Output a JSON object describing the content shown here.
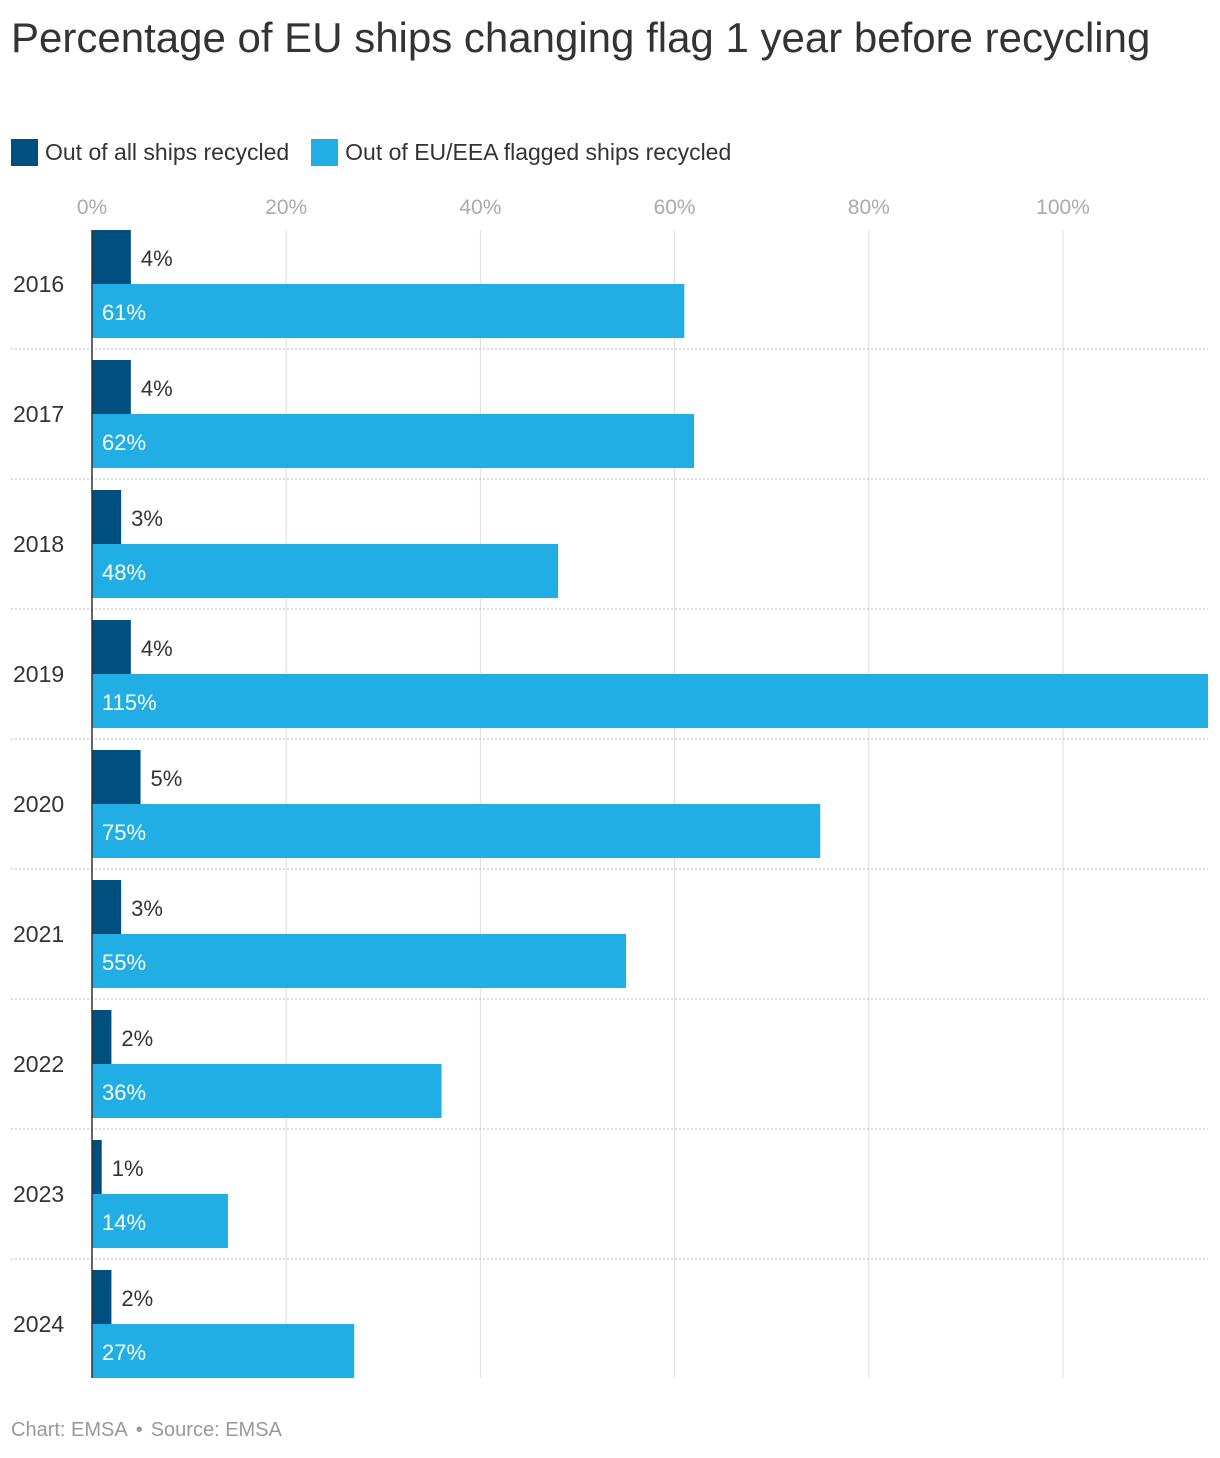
{
  "title": "Percentage of EU ships changing flag 1 year before recycling",
  "legend": [
    {
      "label": "Out of all ships recycled",
      "color": "#00507f"
    },
    {
      "label": "Out of EU/EEA flagged ships recycled",
      "color": "#20aee5"
    }
  ],
  "footer": {
    "chart_credit": "Chart: EMSA",
    "separator": "•",
    "source": "Source: EMSA"
  },
  "chart_data": {
    "type": "bar",
    "orientation": "horizontal",
    "categories": [
      "2016",
      "2017",
      "2018",
      "2019",
      "2020",
      "2021",
      "2022",
      "2023",
      "2024"
    ],
    "series": [
      {
        "name": "Out of all ships recycled",
        "color": "#00507f",
        "label_color": "#333333",
        "values": [
          4,
          4,
          3,
          4,
          5,
          3,
          2,
          1,
          2
        ],
        "labels": [
          "4%",
          "4%",
          "3%",
          "4%",
          "5%",
          "3%",
          "2%",
          "1%",
          "2%"
        ]
      },
      {
        "name": "Out of EU/EEA flagged ships recycled",
        "color": "#20aee5",
        "label_color": "#ffffff",
        "values": [
          61,
          62,
          48,
          115,
          75,
          55,
          36,
          14,
          27
        ],
        "labels": [
          "61%",
          "62%",
          "48%",
          "115%",
          "75%",
          "55%",
          "36%",
          "14%",
          "27%"
        ]
      }
    ],
    "xticks": [
      0,
      20,
      40,
      60,
      80,
      100
    ],
    "xtick_labels": [
      "0%",
      "20%",
      "40%",
      "60%",
      "80%",
      "100%"
    ],
    "xlim": [
      0,
      115
    ],
    "grid": true,
    "legend_position": "top-left"
  }
}
